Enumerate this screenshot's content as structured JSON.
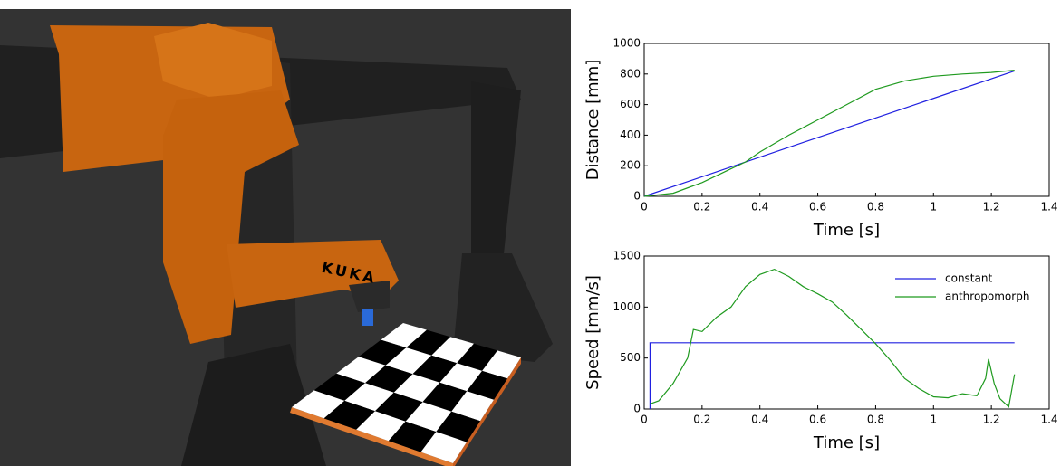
{
  "scene": {
    "logo": "KUKA"
  },
  "chart_data": [
    {
      "type": "line",
      "xlabel": "Time [s]",
      "ylabel": "Distance [mm]",
      "xlim": [
        0,
        1.4
      ],
      "xticks": [
        0,
        0.2,
        0.4,
        0.6,
        0.8,
        1,
        1.2,
        1.4
      ],
      "ylim": [
        0,
        1000
      ],
      "yticks": [
        0,
        200,
        400,
        600,
        800,
        1000
      ],
      "series": [
        {
          "color": "#2020e0",
          "x": [
            0,
            1.28
          ],
          "values": [
            0,
            820
          ]
        },
        {
          "color": "#1f9a1f",
          "x": [
            0,
            0.1,
            0.2,
            0.3,
            0.35,
            0.4,
            0.5,
            0.6,
            0.7,
            0.8,
            0.9,
            1.0,
            1.1,
            1.2,
            1.28
          ],
          "values": [
            0,
            20,
            90,
            180,
            225,
            290,
            400,
            500,
            600,
            700,
            755,
            785,
            800,
            810,
            825
          ]
        }
      ]
    },
    {
      "type": "line",
      "xlabel": "Time [s]",
      "ylabel": "Speed [mm/s]",
      "xlim": [
        0,
        1.4
      ],
      "xticks": [
        0,
        0.2,
        0.4,
        0.6,
        0.8,
        1,
        1.2,
        1.4
      ],
      "ylim": [
        0,
        1500
      ],
      "yticks": [
        0,
        500,
        1000,
        1500
      ],
      "legend": "upper right",
      "series": [
        {
          "name": "constant",
          "color": "#2020e0",
          "x": [
            0.02,
            0.02,
            1.28
          ],
          "values": [
            0,
            650,
            650
          ]
        },
        {
          "name": "anthropomorph",
          "color": "#1f9a1f",
          "x": [
            0.02,
            0.05,
            0.1,
            0.15,
            0.17,
            0.2,
            0.25,
            0.3,
            0.35,
            0.4,
            0.45,
            0.5,
            0.55,
            0.6,
            0.65,
            0.7,
            0.75,
            0.8,
            0.85,
            0.9,
            0.95,
            1.0,
            1.05,
            1.1,
            1.15,
            1.18,
            1.19,
            1.21,
            1.23,
            1.26,
            1.28
          ],
          "values": [
            50,
            80,
            250,
            500,
            780,
            760,
            900,
            1000,
            1200,
            1320,
            1370,
            1300,
            1200,
            1130,
            1050,
            920,
            780,
            640,
            480,
            300,
            200,
            120,
            110,
            150,
            130,
            300,
            490,
            250,
            100,
            20,
            340
          ]
        }
      ]
    }
  ]
}
